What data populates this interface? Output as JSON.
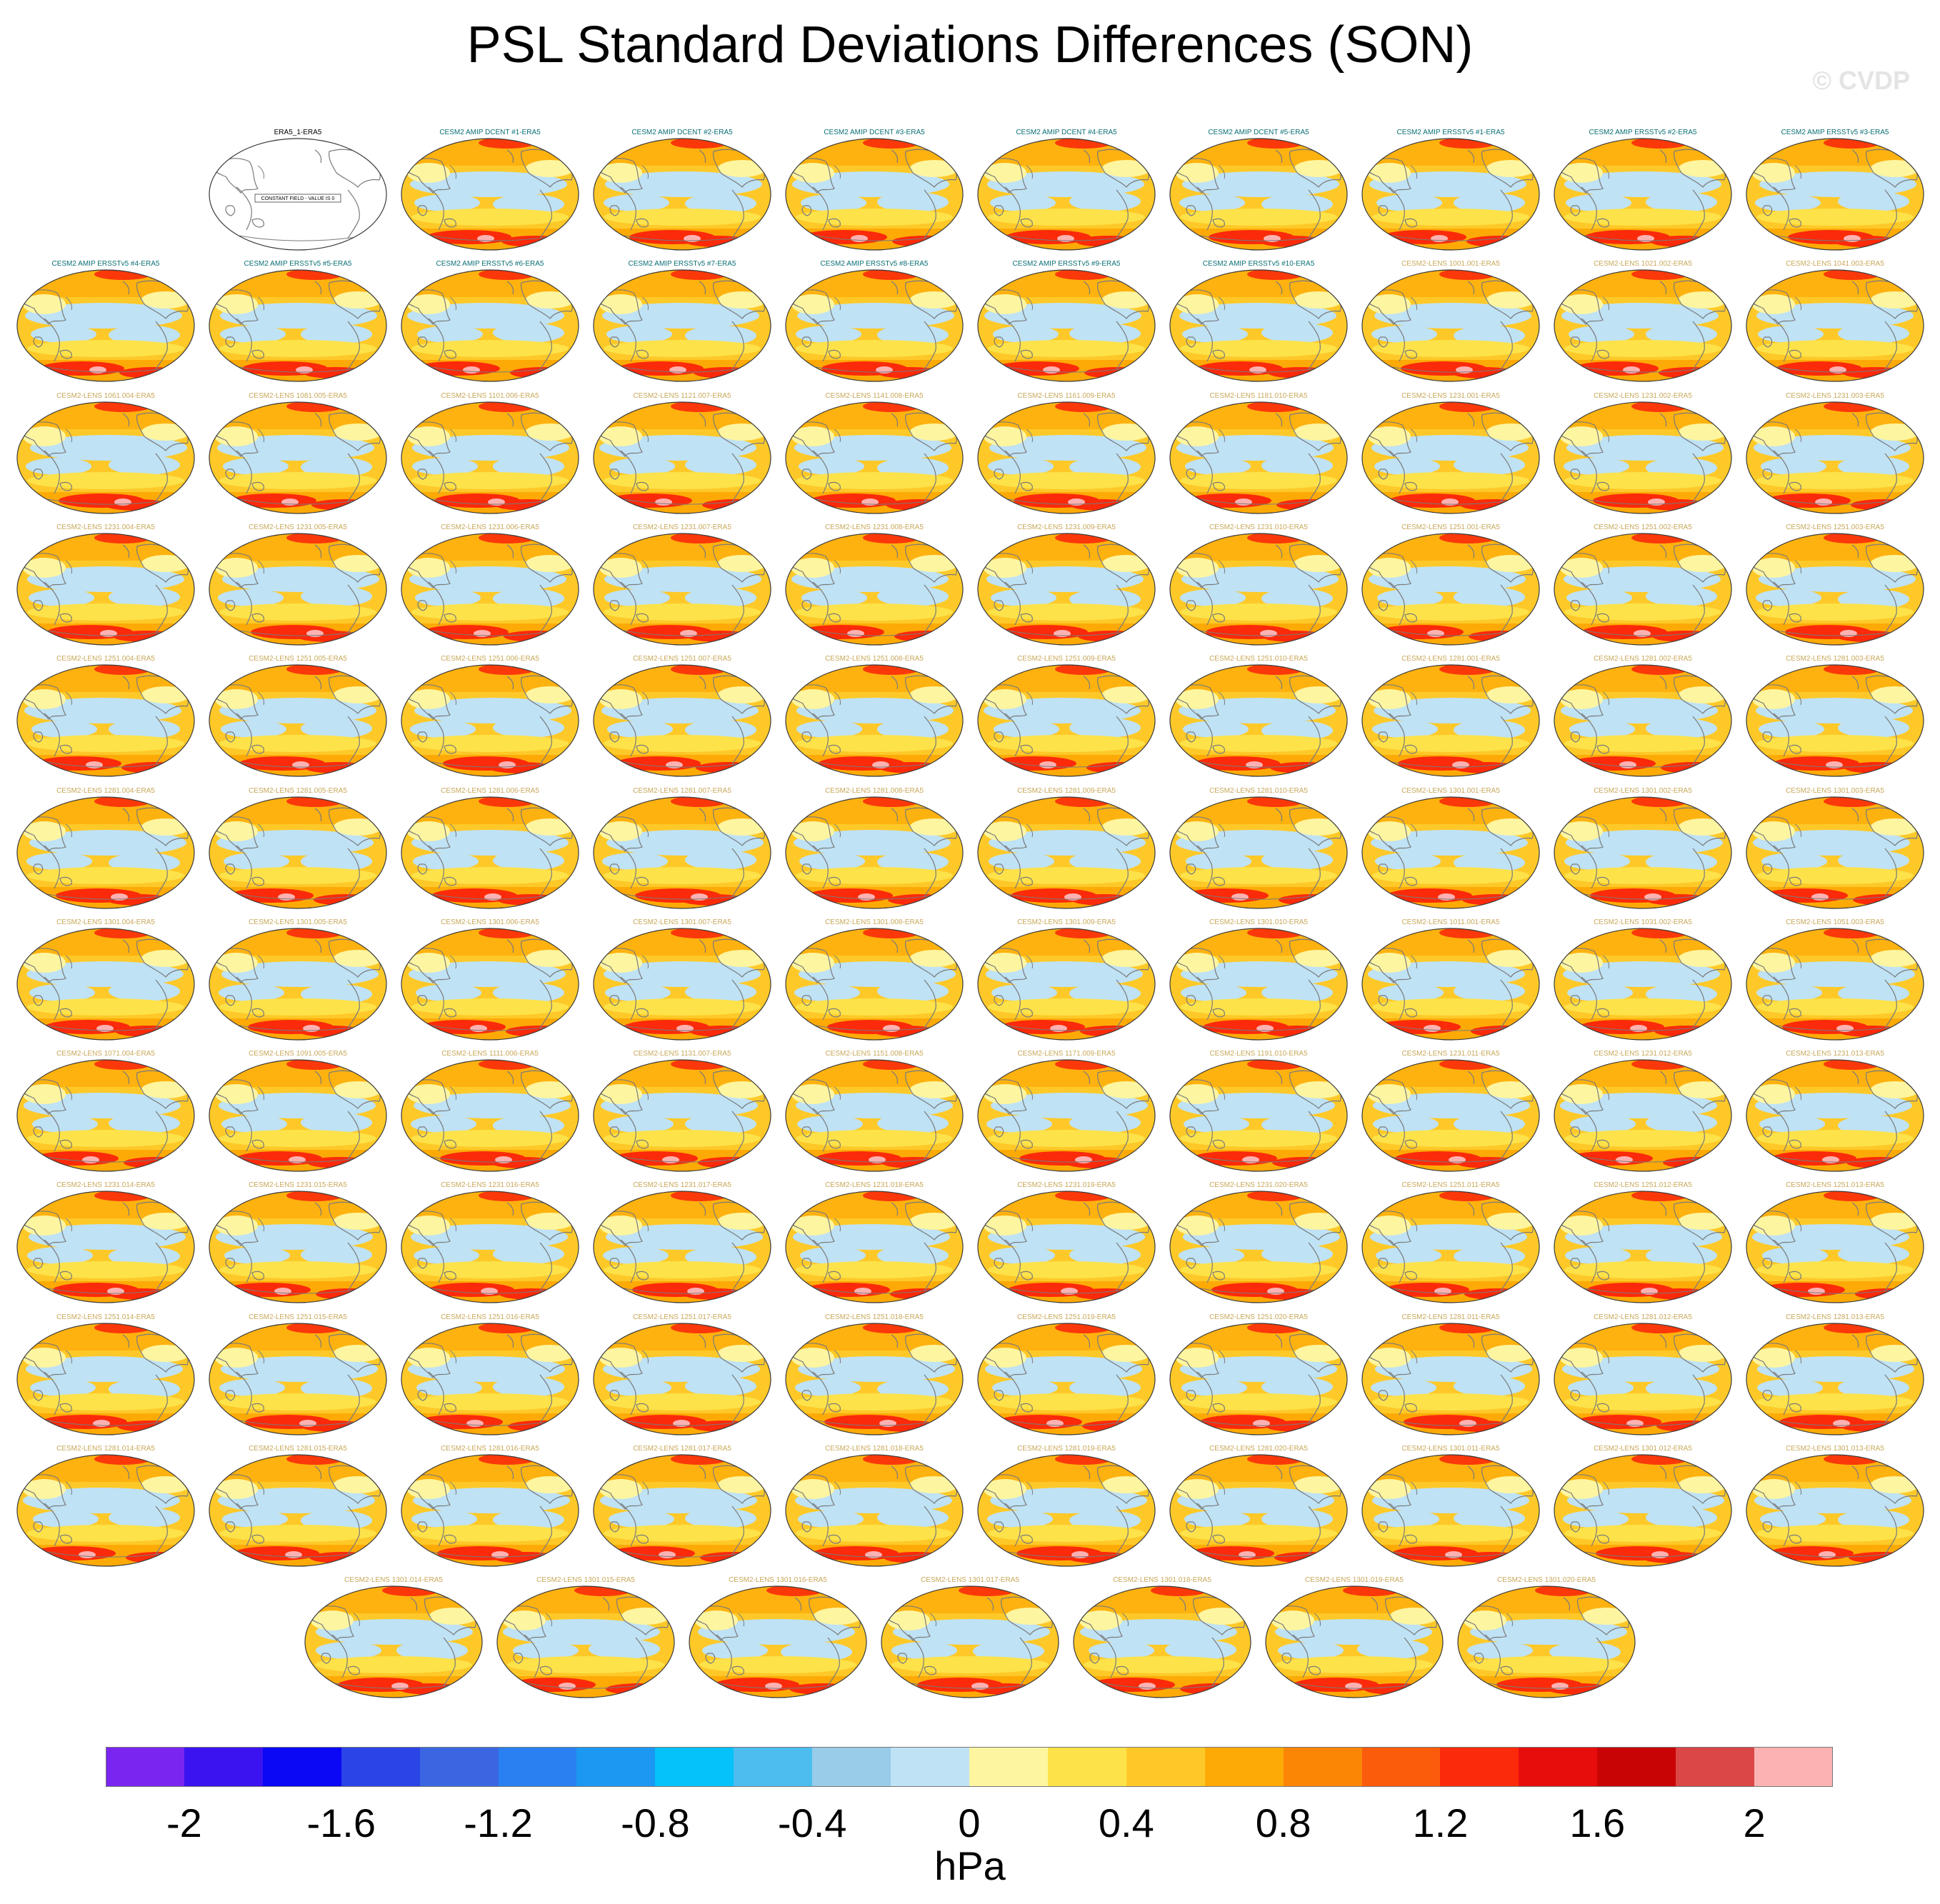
{
  "chart_data": {
    "type": "heatmap",
    "title": "PSL Standard Deviations Differences (SON)",
    "watermark": "© CVDP",
    "colorbar": {
      "units": "hPa",
      "levels": [
        -2.2,
        -2.0,
        -1.8,
        -1.6,
        -1.4,
        -1.2,
        -1.0,
        -0.8,
        -0.6,
        -0.4,
        -0.2,
        0,
        0.2,
        0.4,
        0.6,
        0.8,
        1.0,
        1.2,
        1.4,
        1.6,
        1.8,
        2.0,
        2.2
      ],
      "colors": [
        "#7a26f0",
        "#3b13f0",
        "#0a08f5",
        "#2a44e6",
        "#3a66e2",
        "#2a80f0",
        "#1c98f2",
        "#06c2fa",
        "#4dbdf0",
        "#98cce8",
        "#bfe2f5",
        "#fdf5a0",
        "#fde24a",
        "#fec928",
        "#fdaa07",
        "#fb8606",
        "#fb5c0c",
        "#fb2a0a",
        "#e80d0d",
        "#c90404",
        "#db4646",
        "#fcb2b2"
      ],
      "tick_labels": [
        "-2",
        "-1.6",
        "-1.2",
        "-0.8",
        "-0.4",
        "0",
        "0.4",
        "0.8",
        "1.2",
        "1.6",
        "2"
      ],
      "tick_values": [
        -2,
        -1.6,
        -1.2,
        -0.8,
        -0.4,
        0,
        0.4,
        0.8,
        1.2,
        1.6,
        2
      ]
    },
    "constant_field_label": "CONSTANT FIELD - VALUE IS 0",
    "panels": [
      {
        "title": "ERA5_1-ERA5",
        "constant": true,
        "group": "obs"
      },
      {
        "title": "CESM2 AMIP DCENT #1-ERA5",
        "group": "amip"
      },
      {
        "title": "CESM2 AMIP DCENT #2-ERA5",
        "group": "amip"
      },
      {
        "title": "CESM2 AMIP DCENT #3-ERA5",
        "group": "amip"
      },
      {
        "title": "CESM2 AMIP DCENT #4-ERA5",
        "group": "amip"
      },
      {
        "title": "CESM2 AMIP DCENT #5-ERA5",
        "group": "amip"
      },
      {
        "title": "CESM2 AMIP ERSSTv5 #1-ERA5",
        "group": "amip"
      },
      {
        "title": "CESM2 AMIP ERSSTv5 #2-ERA5",
        "group": "amip"
      },
      {
        "title": "CESM2 AMIP ERSSTv5 #3-ERA5",
        "group": "amip"
      },
      {
        "title": "CESM2 AMIP ERSSTv5 #4-ERA5",
        "group": "amip"
      },
      {
        "title": "CESM2 AMIP ERSSTv5 #5-ERA5",
        "group": "amip"
      },
      {
        "title": "CESM2 AMIP ERSSTv5 #6-ERA5",
        "group": "amip"
      },
      {
        "title": "CESM2 AMIP ERSSTv5 #7-ERA5",
        "group": "amip"
      },
      {
        "title": "CESM2 AMIP ERSSTv5 #8-ERA5",
        "group": "amip"
      },
      {
        "title": "CESM2 AMIP ERSSTv5 #9-ERA5",
        "group": "amip"
      },
      {
        "title": "CESM2 AMIP ERSSTv5 #10-ERA5",
        "group": "amip"
      },
      {
        "title": "CESM2-LENS 1001.001-ERA5",
        "group": "lens"
      },
      {
        "title": "CESM2-LENS 1021.002-ERA5",
        "group": "lens"
      },
      {
        "title": "CESM2-LENS 1041.003-ERA5",
        "group": "lens"
      },
      {
        "title": "CESM2-LENS 1061.004-ERA5",
        "group": "lens"
      },
      {
        "title": "CESM2-LENS 1081.005-ERA5",
        "group": "lens"
      },
      {
        "title": "CESM2-LENS 1101.006-ERA5",
        "group": "lens"
      },
      {
        "title": "CESM2-LENS 1121.007-ERA5",
        "group": "lens"
      },
      {
        "title": "CESM2-LENS 1141.008-ERA5",
        "group": "lens"
      },
      {
        "title": "CESM2-LENS 1161.009-ERA5",
        "group": "lens"
      },
      {
        "title": "CESM2-LENS 1181.010-ERA5",
        "group": "lens"
      },
      {
        "title": "CESM2-LENS 1231.001-ERA5",
        "group": "lens"
      },
      {
        "title": "CESM2-LENS 1231.002-ERA5",
        "group": "lens"
      },
      {
        "title": "CESM2-LENS 1231.003-ERA5",
        "group": "lens"
      },
      {
        "title": "CESM2-LENS 1231.004-ERA5",
        "group": "lens"
      },
      {
        "title": "CESM2-LENS 1231.005-ERA5",
        "group": "lens"
      },
      {
        "title": "CESM2-LENS 1231.006-ERA5",
        "group": "lens"
      },
      {
        "title": "CESM2-LENS 1231.007-ERA5",
        "group": "lens"
      },
      {
        "title": "CESM2-LENS 1231.008-ERA5",
        "group": "lens"
      },
      {
        "title": "CESM2-LENS 1231.009-ERA5",
        "group": "lens"
      },
      {
        "title": "CESM2-LENS 1231.010-ERA5",
        "group": "lens"
      },
      {
        "title": "CESM2-LENS 1251.001-ERA5",
        "group": "lens"
      },
      {
        "title": "CESM2-LENS 1251.002-ERA5",
        "group": "lens"
      },
      {
        "title": "CESM2-LENS 1251.003-ERA5",
        "group": "lens"
      },
      {
        "title": "CESM2-LENS 1251.004-ERA5",
        "group": "lens"
      },
      {
        "title": "CESM2-LENS 1251.005-ERA5",
        "group": "lens"
      },
      {
        "title": "CESM2-LENS 1251.006-ERA5",
        "group": "lens"
      },
      {
        "title": "CESM2-LENS 1251.007-ERA5",
        "group": "lens"
      },
      {
        "title": "CESM2-LENS 1251.008-ERA5",
        "group": "lens"
      },
      {
        "title": "CESM2-LENS 1251.009-ERA5",
        "group": "lens"
      },
      {
        "title": "CESM2-LENS 1251.010-ERA5",
        "group": "lens"
      },
      {
        "title": "CESM2-LENS 1281.001-ERA5",
        "group": "lens"
      },
      {
        "title": "CESM2-LENS 1281.002-ERA5",
        "group": "lens"
      },
      {
        "title": "CESM2-LENS 1281.003-ERA5",
        "group": "lens"
      },
      {
        "title": "CESM2-LENS 1281.004-ERA5",
        "group": "lens"
      },
      {
        "title": "CESM2-LENS 1281.005-ERA5",
        "group": "lens"
      },
      {
        "title": "CESM2-LENS 1281.006-ERA5",
        "group": "lens"
      },
      {
        "title": "CESM2-LENS 1281.007-ERA5",
        "group": "lens"
      },
      {
        "title": "CESM2-LENS 1281.008-ERA5",
        "group": "lens"
      },
      {
        "title": "CESM2-LENS 1281.009-ERA5",
        "group": "lens"
      },
      {
        "title": "CESM2-LENS 1281.010-ERA5",
        "group": "lens"
      },
      {
        "title": "CESM2-LENS 1301.001-ERA5",
        "group": "lens"
      },
      {
        "title": "CESM2-LENS 1301.002-ERA5",
        "group": "lens"
      },
      {
        "title": "CESM2-LENS 1301.003-ERA5",
        "group": "lens"
      },
      {
        "title": "CESM2-LENS 1301.004-ERA5",
        "group": "lens"
      },
      {
        "title": "CESM2-LENS 1301.005-ERA5",
        "group": "lens"
      },
      {
        "title": "CESM2-LENS 1301.006-ERA5",
        "group": "lens"
      },
      {
        "title": "CESM2-LENS 1301.007-ERA5",
        "group": "lens"
      },
      {
        "title": "CESM2-LENS 1301.008-ERA5",
        "group": "lens"
      },
      {
        "title": "CESM2-LENS 1301.009-ERA5",
        "group": "lens"
      },
      {
        "title": "CESM2-LENS 1301.010-ERA5",
        "group": "lens"
      },
      {
        "title": "CESM2-LENS 1011.001-ERA5",
        "group": "lens"
      },
      {
        "title": "CESM2-LENS 1031.002-ERA5",
        "group": "lens"
      },
      {
        "title": "CESM2-LENS 1051.003-ERA5",
        "group": "lens"
      },
      {
        "title": "CESM2-LENS 1071.004-ERA5",
        "group": "lens"
      },
      {
        "title": "CESM2-LENS 1091.005-ERA5",
        "group": "lens"
      },
      {
        "title": "CESM2-LENS 1111.006-ERA5",
        "group": "lens"
      },
      {
        "title": "CESM2-LENS 1131.007-ERA5",
        "group": "lens"
      },
      {
        "title": "CESM2-LENS 1151.008-ERA5",
        "group": "lens"
      },
      {
        "title": "CESM2-LENS 1171.009-ERA5",
        "group": "lens"
      },
      {
        "title": "CESM2-LENS 1191.010-ERA5",
        "group": "lens"
      },
      {
        "title": "CESM2-LENS 1231.011-ERA5",
        "group": "lens"
      },
      {
        "title": "CESM2-LENS 1231.012-ERA5",
        "group": "lens"
      },
      {
        "title": "CESM2-LENS 1231.013-ERA5",
        "group": "lens"
      },
      {
        "title": "CESM2-LENS 1231.014-ERA5",
        "group": "lens"
      },
      {
        "title": "CESM2-LENS 1231.015-ERA5",
        "group": "lens"
      },
      {
        "title": "CESM2-LENS 1231.016-ERA5",
        "group": "lens"
      },
      {
        "title": "CESM2-LENS 1231.017-ERA5",
        "group": "lens"
      },
      {
        "title": "CESM2-LENS 1231.018-ERA5",
        "group": "lens"
      },
      {
        "title": "CESM2-LENS 1231.019-ERA5",
        "group": "lens"
      },
      {
        "title": "CESM2-LENS 1231.020-ERA5",
        "group": "lens"
      },
      {
        "title": "CESM2-LENS 1251.011-ERA5",
        "group": "lens"
      },
      {
        "title": "CESM2-LENS 1251.012-ERA5",
        "group": "lens"
      },
      {
        "title": "CESM2-LENS 1251.013-ERA5",
        "group": "lens"
      },
      {
        "title": "CESM2-LENS 1251.014-ERA5",
        "group": "lens"
      },
      {
        "title": "CESM2-LENS 1251.015-ERA5",
        "group": "lens"
      },
      {
        "title": "CESM2-LENS 1251.016-ERA5",
        "group": "lens"
      },
      {
        "title": "CESM2-LENS 1251.017-ERA5",
        "group": "lens"
      },
      {
        "title": "CESM2-LENS 1251.018-ERA5",
        "group": "lens"
      },
      {
        "title": "CESM2-LENS 1251.019-ERA5",
        "group": "lens"
      },
      {
        "title": "CESM2-LENS 1251.020-ERA5",
        "group": "lens"
      },
      {
        "title": "CESM2-LENS 1281.011-ERA5",
        "group": "lens"
      },
      {
        "title": "CESM2-LENS 1281.012-ERA5",
        "group": "lens"
      },
      {
        "title": "CESM2-LENS 1281.013-ERA5",
        "group": "lens"
      },
      {
        "title": "CESM2-LENS 1281.014-ERA5",
        "group": "lens"
      },
      {
        "title": "CESM2-LENS 1281.015-ERA5",
        "group": "lens"
      },
      {
        "title": "CESM2-LENS 1281.016-ERA5",
        "group": "lens"
      },
      {
        "title": "CESM2-LENS 1281.017-ERA5",
        "group": "lens"
      },
      {
        "title": "CESM2-LENS 1281.018-ERA5",
        "group": "lens"
      },
      {
        "title": "CESM2-LENS 1281.019-ERA5",
        "group": "lens"
      },
      {
        "title": "CESM2-LENS 1281.020-ERA5",
        "group": "lens"
      },
      {
        "title": "CESM2-LENS 1301.011-ERA5",
        "group": "lens"
      },
      {
        "title": "CESM2-LENS 1301.012-ERA5",
        "group": "lens"
      },
      {
        "title": "CESM2-LENS 1301.013-ERA5",
        "group": "lens"
      },
      {
        "title": "CESM2-LENS 1301.014-ERA5",
        "group": "lens"
      },
      {
        "title": "CESM2-LENS 1301.015-ERA5",
        "group": "lens"
      },
      {
        "title": "CESM2-LENS 1301.016-ERA5",
        "group": "lens"
      },
      {
        "title": "CESM2-LENS 1301.017-ERA5",
        "group": "lens"
      },
      {
        "title": "CESM2-LENS 1301.018-ERA5",
        "group": "lens"
      },
      {
        "title": "CESM2-LENS 1301.019-ERA5",
        "group": "lens"
      },
      {
        "title": "CESM2-LENS 1301.020-ERA5",
        "group": "lens"
      }
    ],
    "title_colors": {
      "obs": "#000000",
      "amip": "#0a6f74",
      "lens": "#c9a85a"
    },
    "map_colors": {
      "frame": "#3a3a3a",
      "coast": "#7a7a7a",
      "base": "#fec928",
      "light_blue": "#bfe2f5",
      "pale_yellow": "#fdf5a0",
      "yellow": "#fde24a",
      "orange": "#fdaa07",
      "red": "#fb2a0a",
      "dark_red": "#e80d0d",
      "pink": "#fcb2b2",
      "blue": "#4dbdf0"
    }
  }
}
